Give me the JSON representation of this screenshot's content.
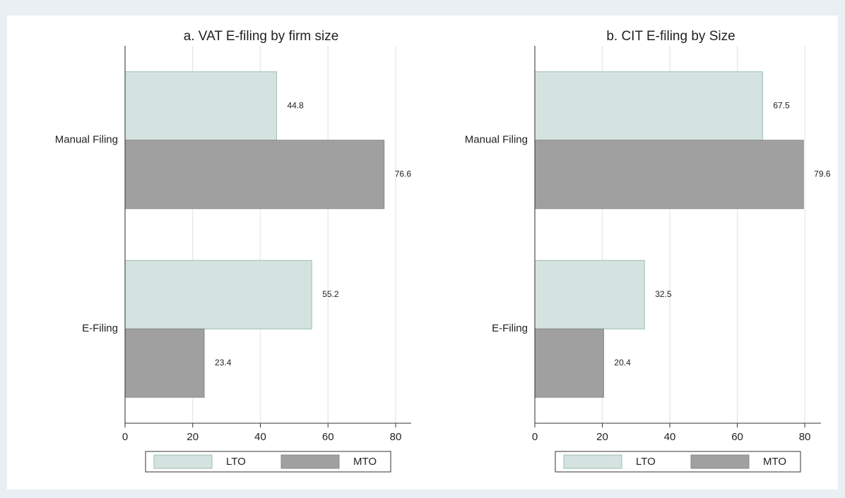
{
  "chart_data": [
    {
      "type": "bar",
      "orientation": "horizontal",
      "title": "a. VAT E-filing by firm size",
      "categories": [
        "Manual Filing",
        "E-Filing"
      ],
      "series": [
        {
          "name": "LTO",
          "color": "#d5e3e0",
          "values": [
            44.8,
            55.2
          ]
        },
        {
          "name": "MTO",
          "color": "#a0a0a0",
          "values": [
            76.6,
            23.4
          ]
        }
      ],
      "xlim": [
        0,
        84.6
      ],
      "xticks": [
        0,
        20,
        40,
        60,
        80
      ],
      "grid": true,
      "legend": "bottom"
    },
    {
      "type": "bar",
      "orientation": "horizontal",
      "title": "b. CIT E-filing by Size",
      "categories": [
        "Manual Filing",
        "E-Filing"
      ],
      "series": [
        {
          "name": "LTO",
          "color": "#d5e3e0",
          "values": [
            67.5,
            32.5
          ]
        },
        {
          "name": "MTO",
          "color": "#a0a0a0",
          "values": [
            79.6,
            20.4
          ]
        }
      ],
      "xlim": [
        0,
        84.8
      ],
      "xticks": [
        0,
        20,
        40,
        60,
        80
      ],
      "grid": true,
      "legend": "bottom"
    }
  ]
}
